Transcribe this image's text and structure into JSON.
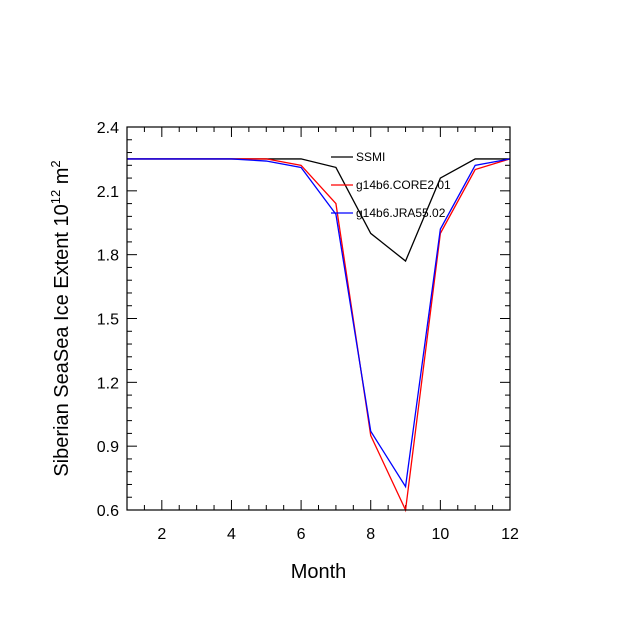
{
  "chart_data": {
    "type": "line",
    "title": "",
    "xlabel": "Month",
    "ylabel": {
      "prefix": "Siberian SeaSea Ice Extent 10",
      "exponent": "12",
      "unit": " m",
      "unit_exponent": "2"
    },
    "xlim": [
      1,
      12
    ],
    "ylim": [
      0.6,
      2.4
    ],
    "xticks": [
      2,
      4,
      6,
      8,
      10,
      12
    ],
    "xtick_labels": [
      "2",
      "4",
      "6",
      "8",
      "10",
      "12"
    ],
    "yticks": [
      0.6,
      0.9,
      1.2,
      1.5,
      1.8,
      2.1,
      2.4
    ],
    "ytick_labels": [
      "0.6",
      "0.9",
      "1.2",
      "1.5",
      "1.8",
      "2.1",
      "2.4"
    ],
    "grid": false,
    "legend_position": "top-right (inside)",
    "x": [
      1,
      2,
      3,
      4,
      5,
      6,
      7,
      8,
      9,
      10,
      11,
      12
    ],
    "series": [
      {
        "name": "SSMI",
        "color": "#000000",
        "values": [
          2.25,
          2.25,
          2.25,
          2.25,
          2.25,
          2.25,
          2.21,
          1.9,
          1.77,
          2.16,
          2.25,
          2.25
        ]
      },
      {
        "name": "g14b6.CORE2.01",
        "color": "#ff0000",
        "values": [
          2.25,
          2.25,
          2.25,
          2.25,
          2.25,
          2.22,
          2.04,
          0.95,
          0.6,
          1.9,
          2.2,
          2.25
        ]
      },
      {
        "name": "g14b6.JRA55.02",
        "color": "#0000ff",
        "values": [
          2.25,
          2.25,
          2.25,
          2.25,
          2.24,
          2.21,
          1.99,
          0.97,
          0.71,
          1.92,
          2.22,
          2.25
        ]
      }
    ]
  }
}
